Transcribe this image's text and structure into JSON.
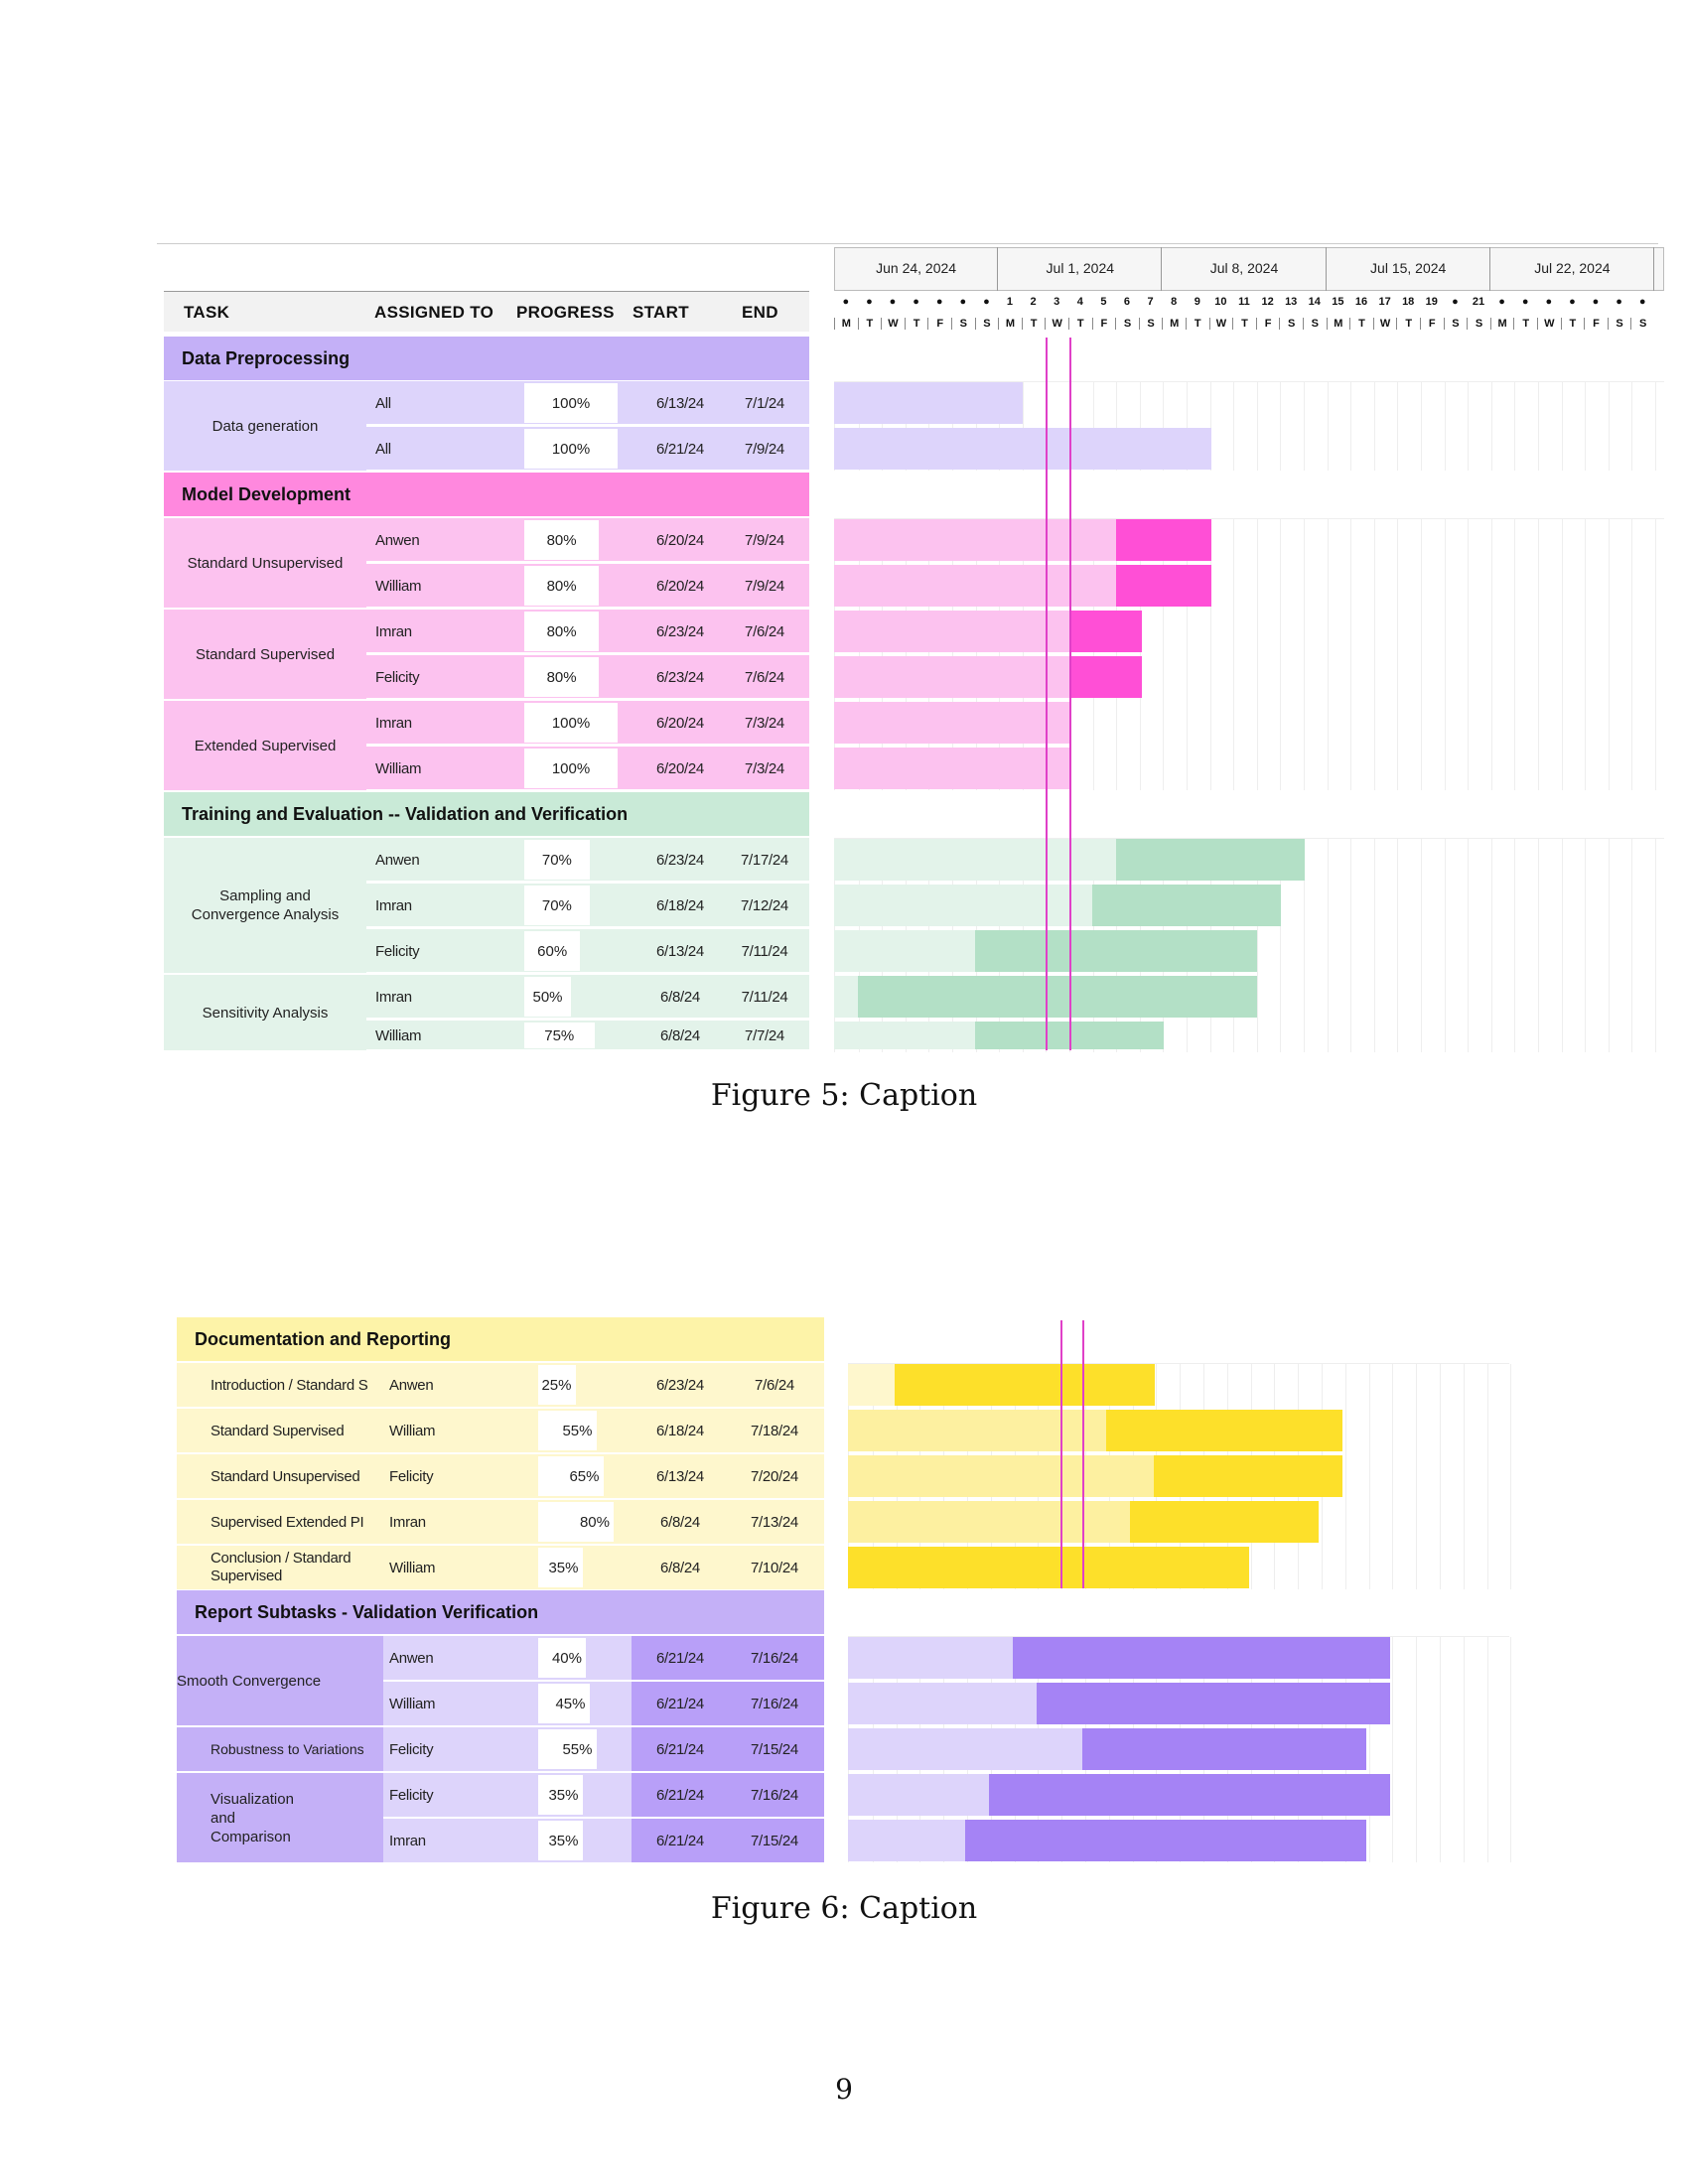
{
  "figure5": {
    "headers": {
      "task": "TASK",
      "assigned": "ASSIGNED TO",
      "progress": "PROGRESS",
      "start": "START",
      "end": "END"
    },
    "weeks": [
      "Jun 24, 2024",
      "Jul 1, 2024",
      "Jul 8, 2024",
      "Jul 15, 2024",
      "Jul 22, 2024"
    ],
    "day_numbers": [
      "●",
      "●",
      "●",
      "●",
      "●",
      "●",
      "●",
      "1",
      "2",
      "3",
      "4",
      "5",
      "6",
      "7",
      "8",
      "9",
      "10",
      "11",
      "12",
      "13",
      "14",
      "15",
      "16",
      "17",
      "18",
      "19",
      "●",
      "21",
      "●",
      "●",
      "●",
      "●",
      "●",
      "●",
      "●"
    ],
    "day_letters": [
      "M",
      "T",
      "W",
      "T",
      "F",
      "S",
      "S",
      "M",
      "T",
      "W",
      "T",
      "F",
      "S",
      "S",
      "M",
      "T",
      "W",
      "T",
      "F",
      "S",
      "S",
      "M",
      "T",
      "W",
      "T",
      "F",
      "S",
      "S",
      "M",
      "T",
      "W",
      "T",
      "F",
      "S",
      "S"
    ],
    "sections": {
      "data_preprocessing": "Data Preprocessing",
      "model_development": "Model Development",
      "training": "Training and Evaluation -- Validation and Verification"
    },
    "tasks": {
      "data_generation": "Data generation",
      "standard_unsupervised": "Standard Unsupervised",
      "standard_supervised": "Standard Supervised",
      "extended_supervised": "Extended Supervised",
      "sampling": "Sampling and Convergence Analysis",
      "sensitivity": "Sensitivity Analysis"
    },
    "rows": [
      {
        "assigned": "All",
        "progress": "100%",
        "progress_value": 100,
        "start": "6/13/24",
        "end": "7/1/24"
      },
      {
        "assigned": "All",
        "progress": "100%",
        "progress_value": 100,
        "start": "6/21/24",
        "end": "7/9/24"
      },
      {
        "assigned": "Anwen",
        "progress": "80%",
        "progress_value": 80,
        "start": "6/20/24",
        "end": "7/9/24"
      },
      {
        "assigned": "William",
        "progress": "80%",
        "progress_value": 80,
        "start": "6/20/24",
        "end": "7/9/24"
      },
      {
        "assigned": "Imran",
        "progress": "80%",
        "progress_value": 80,
        "start": "6/23/24",
        "end": "7/6/24"
      },
      {
        "assigned": "Felicity",
        "progress": "80%",
        "progress_value": 80,
        "start": "6/23/24",
        "end": "7/6/24"
      },
      {
        "assigned": "Imran",
        "progress": "100%",
        "progress_value": 100,
        "start": "6/20/24",
        "end": "7/3/24"
      },
      {
        "assigned": "William",
        "progress": "100%",
        "progress_value": 100,
        "start": "6/20/24",
        "end": "7/3/24"
      },
      {
        "assigned": "Anwen",
        "progress": "70%",
        "progress_value": 70,
        "start": "6/23/24",
        "end": "7/17/24"
      },
      {
        "assigned": "Imran",
        "progress": "70%",
        "progress_value": 70,
        "start": "6/18/24",
        "end": "7/12/24"
      },
      {
        "assigned": "Felicity",
        "progress": "60%",
        "progress_value": 60,
        "start": "6/13/24",
        "end": "7/11/24"
      },
      {
        "assigned": "Imran",
        "progress": "50%",
        "progress_value": 50,
        "start": "6/8/24",
        "end": "7/11/24"
      },
      {
        "assigned": "William",
        "progress": "75%",
        "progress_value": 75,
        "start": "6/8/24",
        "end": "7/7/24"
      }
    ],
    "caption": "Figure 5: Caption"
  },
  "figure6": {
    "sections": {
      "documentation": "Documentation and Reporting",
      "report_subtasks": "Report Subtasks - Validation Verification"
    },
    "doc_rows": [
      {
        "task": "Introduction / Standard S",
        "assigned": "Anwen",
        "progress": "25%",
        "progress_value": 25,
        "start": "6/23/24",
        "end": "7/6/24"
      },
      {
        "task": "Standard Supervised",
        "assigned": "William",
        "progress": "55%",
        "progress_value": 55,
        "start": "6/18/24",
        "end": "7/18/24"
      },
      {
        "task": "Standard Unsupervised",
        "assigned": "Felicity",
        "progress": "65%",
        "progress_value": 65,
        "start": "6/13/24",
        "end": "7/20/24"
      },
      {
        "task": "Supervised Extended PI",
        "assigned": "Imran",
        "progress": "80%",
        "progress_value": 80,
        "start": "6/8/24",
        "end": "7/13/24"
      },
      {
        "task": "Conclusion / Standard Supervised",
        "assigned": "William",
        "progress": "35%",
        "progress_value": 35,
        "start": "6/8/24",
        "end": "7/10/24"
      }
    ],
    "report_tasks": {
      "smooth": "Smooth Convergence",
      "robustness": "Robustness to Variations",
      "visualization": "Visualization and Comparison"
    },
    "report_rows": [
      {
        "assigned": "Anwen",
        "progress": "40%",
        "progress_value": 40,
        "start": "6/21/24",
        "end": "7/16/24"
      },
      {
        "assigned": "William",
        "progress": "45%",
        "progress_value": 45,
        "start": "6/21/24",
        "end": "7/16/24"
      },
      {
        "assigned": "Felicity",
        "progress": "55%",
        "progress_value": 55,
        "start": "6/21/24",
        "end": "7/15/24"
      },
      {
        "assigned": "Felicity",
        "progress": "35%",
        "progress_value": 35,
        "start": "6/21/24",
        "end": "7/16/24"
      },
      {
        "assigned": "Imran",
        "progress": "35%",
        "progress_value": 35,
        "start": "6/21/24",
        "end": "7/15/24"
      }
    ],
    "caption": "Figure 6: Caption"
  },
  "page_number": "9",
  "colors": {
    "purple_header": "#c4b0f7",
    "purple_light": "#ddd4fb",
    "purple_bar": "#a583f5",
    "pink_header": "#ff88de",
    "pink_light": "#fcc2ef",
    "pink_bar": "#ff4fd6",
    "green_header": "#c9ead7",
    "green_light": "#e3f3ea",
    "green_bar": "#b3e0c6",
    "yellow_header": "#fdf3a8",
    "yellow_light": "#fef7cd",
    "yellow_mid": "#fdf0a0",
    "yellow_bar": "#fde02a",
    "today_line": "#e040c8"
  }
}
